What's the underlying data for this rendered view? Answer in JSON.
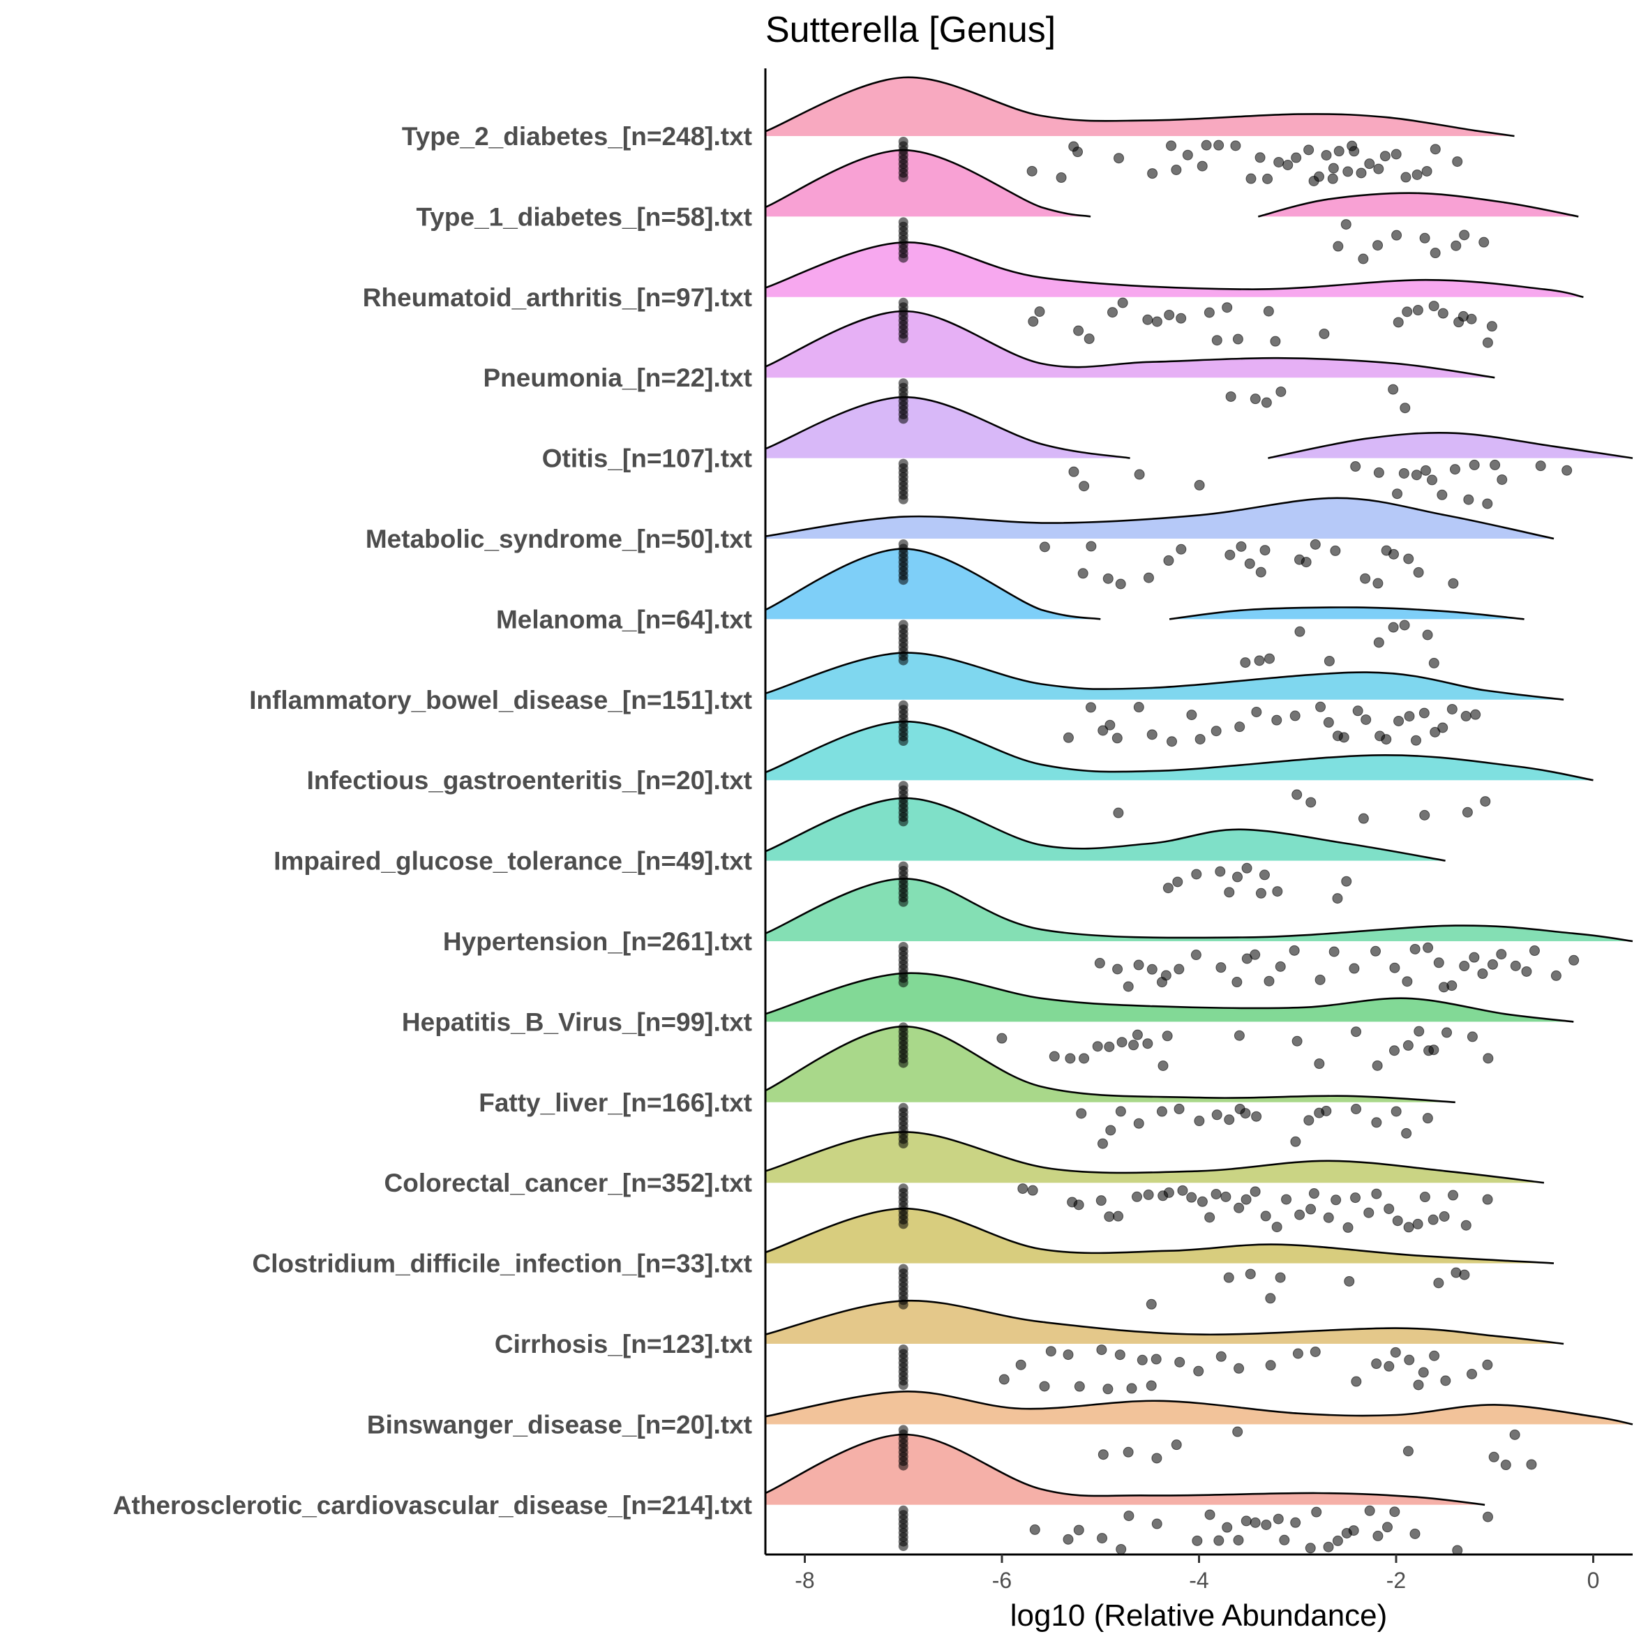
{
  "chart_data": {
    "type": "raincloud",
    "title": "Sutterella [Genus]",
    "xlabel": "log10 (Relative Abundance)",
    "ylabel": "",
    "xlim": [
      -8.4,
      0.4
    ],
    "x_ticks": [
      -8,
      -6,
      -4,
      -2,
      0
    ],
    "x_tick_labels": [
      "-8",
      "-6",
      "-4",
      "-2",
      "0"
    ],
    "zero_value": -7.0,
    "grid": false,
    "legend": "none",
    "categories": [
      {
        "name": "Type_2_diabetes_[n=248].txt",
        "color": "#f8a9c0",
        "density": [
          [
            -8.4,
            0.06
          ],
          [
            -7.0,
            0.75
          ],
          [
            -5.6,
            0.26
          ],
          [
            -4.5,
            0.2
          ],
          [
            -3.0,
            0.28
          ],
          [
            -2.1,
            0.24
          ],
          [
            -1.2,
            0.07
          ],
          [
            -0.8,
            0.0
          ]
        ],
        "points": [
          -5.7,
          -5.4,
          -5.3,
          -5.2,
          -4.8,
          -4.5,
          -4.3,
          -4.2,
          -4.1,
          -4.0,
          -3.9,
          -3.8,
          -3.6,
          -3.5,
          -3.4,
          -3.3,
          -3.2,
          -3.1,
          -3.0,
          -2.9,
          -2.8,
          -2.75,
          -2.7,
          -2.65,
          -2.6,
          -2.55,
          -2.5,
          -2.45,
          -2.4,
          -2.35,
          -2.3,
          -2.2,
          -2.1,
          -2.0,
          -1.9,
          -1.8,
          -1.7,
          -1.6,
          -1.4
        ]
      },
      {
        "name": "Type_1_diabetes_[n=58].txt",
        "color": "#f8a1d4",
        "density": [
          [
            -8.4,
            0.12
          ],
          [
            -7.0,
            0.85
          ],
          [
            -5.6,
            0.12
          ],
          [
            -5.1,
            0.0
          ]
        ],
        "density2": [
          [
            -3.4,
            0.0
          ],
          [
            -2.7,
            0.22
          ],
          [
            -1.8,
            0.3
          ],
          [
            -0.9,
            0.18
          ],
          [
            -0.15,
            0.0
          ]
        ],
        "points": [
          -2.6,
          -2.5,
          -2.3,
          -2.2,
          -2.0,
          -1.7,
          -1.6,
          -1.4,
          -1.3,
          -1.1
        ]
      },
      {
        "name": "Rheumatoid_arthritis_[n=97].txt",
        "color": "#f7a8ef",
        "density": [
          [
            -8.4,
            0.12
          ],
          [
            -7.0,
            0.7
          ],
          [
            -5.6,
            0.25
          ],
          [
            -3.5,
            0.1
          ],
          [
            -1.7,
            0.22
          ],
          [
            -0.5,
            0.1
          ],
          [
            -0.1,
            0.0
          ]
        ],
        "points": [
          -5.7,
          -5.6,
          -5.2,
          -5.1,
          -4.9,
          -4.8,
          -4.5,
          -4.4,
          -4.3,
          -4.2,
          -3.9,
          -3.8,
          -3.7,
          -3.6,
          -3.3,
          -3.2,
          -2.7,
          -2.0,
          -1.9,
          -1.8,
          -1.6,
          -1.5,
          -1.4,
          -1.3,
          -1.2,
          -1.1,
          -1.0
        ]
      },
      {
        "name": "Pneumonia_[n=22].txt",
        "color": "#e6b0f5",
        "density": [
          [
            -8.4,
            0.14
          ],
          [
            -7.0,
            0.85
          ],
          [
            -5.6,
            0.18
          ],
          [
            -4.5,
            0.2
          ],
          [
            -3.2,
            0.25
          ],
          [
            -2.0,
            0.18
          ],
          [
            -1.0,
            0.0
          ]
        ],
        "points": [
          -3.7,
          -3.4,
          -3.3,
          -3.2,
          -2.0,
          -1.9
        ]
      },
      {
        "name": "Otitis_[n=107].txt",
        "color": "#d8b8f8",
        "density": [
          [
            -8.4,
            0.12
          ],
          [
            -7.0,
            0.78
          ],
          [
            -5.6,
            0.18
          ],
          [
            -4.7,
            0.0
          ]
        ],
        "density2": [
          [
            -3.3,
            0.0
          ],
          [
            -2.3,
            0.25
          ],
          [
            -1.4,
            0.32
          ],
          [
            -0.4,
            0.15
          ],
          [
            0.4,
            0.0
          ]
        ],
        "points": [
          -5.3,
          -5.2,
          -4.6,
          -4.0,
          -2.4,
          -2.2,
          -2.0,
          -1.9,
          -1.8,
          -1.7,
          -1.6,
          -1.5,
          -1.4,
          -1.3,
          -1.2,
          -1.1,
          -1.0,
          -0.9,
          -0.5,
          -0.3
        ]
      },
      {
        "name": "Metabolic_syndrome_[n=50].txt",
        "color": "#b6c9f8",
        "density": [
          [
            -8.4,
            0.03
          ],
          [
            -7.0,
            0.28
          ],
          [
            -5.5,
            0.2
          ],
          [
            -4.0,
            0.3
          ],
          [
            -2.6,
            0.52
          ],
          [
            -1.5,
            0.3
          ],
          [
            -0.4,
            0.0
          ]
        ],
        "points": [
          -5.6,
          -5.2,
          -5.1,
          -4.9,
          -4.8,
          -4.5,
          -4.3,
          -4.2,
          -3.7,
          -3.6,
          -3.5,
          -3.4,
          -3.3,
          -3.0,
          -2.9,
          -2.8,
          -2.6,
          -2.3,
          -2.2,
          -2.1,
          -2.0,
          -1.9,
          -1.8,
          -1.4
        ]
      },
      {
        "name": "Melanoma_[n=64].txt",
        "color": "#7ecff8",
        "density": [
          [
            -8.4,
            0.12
          ],
          [
            -7.0,
            0.9
          ],
          [
            -5.6,
            0.12
          ],
          [
            -5.0,
            0.0
          ]
        ],
        "density2": [
          [
            -4.3,
            0.0
          ],
          [
            -3.5,
            0.12
          ],
          [
            -2.4,
            0.15
          ],
          [
            -1.5,
            0.1
          ],
          [
            -0.7,
            0.0
          ]
        ],
        "points": [
          -3.5,
          -3.4,
          -3.3,
          -3.0,
          -2.7,
          -2.2,
          -2.0,
          -1.9,
          -1.7,
          -1.6
        ]
      },
      {
        "name": "Inflammatory_bowel_disease_[n=151].txt",
        "color": "#7fd7ef",
        "density": [
          [
            -8.4,
            0.08
          ],
          [
            -7.0,
            0.6
          ],
          [
            -5.6,
            0.2
          ],
          [
            -4.5,
            0.15
          ],
          [
            -2.3,
            0.35
          ],
          [
            -1.1,
            0.12
          ],
          [
            -0.3,
            0.0
          ]
        ],
        "points": [
          -5.3,
          -5.1,
          -5.0,
          -4.9,
          -4.8,
          -4.6,
          -4.5,
          -4.3,
          -4.1,
          -4.0,
          -3.8,
          -3.6,
          -3.4,
          -3.2,
          -3.0,
          -2.8,
          -2.7,
          -2.6,
          -2.5,
          -2.4,
          -2.3,
          -2.2,
          -2.1,
          -2.0,
          -1.9,
          -1.8,
          -1.7,
          -1.6,
          -1.5,
          -1.4,
          -1.3,
          -1.2
        ]
      },
      {
        "name": "Infectious_gastroenteritis_[n=20].txt",
        "color": "#7fe0e0",
        "density": [
          [
            -8.4,
            0.1
          ],
          [
            -7.0,
            0.75
          ],
          [
            -5.6,
            0.2
          ],
          [
            -4.4,
            0.12
          ],
          [
            -2.2,
            0.32
          ],
          [
            -0.8,
            0.18
          ],
          [
            0.0,
            0.0
          ]
        ],
        "points": [
          -4.8,
          -3.0,
          -2.9,
          -2.3,
          -1.7,
          -1.3,
          -1.1
        ]
      },
      {
        "name": "Impaired_glucose_tolerance_[n=49].txt",
        "color": "#7fe0c8",
        "density": [
          [
            -8.4,
            0.12
          ],
          [
            -7.0,
            0.8
          ],
          [
            -5.6,
            0.2
          ],
          [
            -4.5,
            0.22
          ],
          [
            -3.6,
            0.4
          ],
          [
            -2.5,
            0.22
          ],
          [
            -1.5,
            0.0
          ]
        ],
        "points": [
          -4.3,
          -4.2,
          -4.0,
          -3.8,
          -3.7,
          -3.6,
          -3.5,
          -3.4,
          -3.3,
          -3.2,
          -2.6,
          -2.5
        ]
      },
      {
        "name": "Hypertension_[n=261].txt",
        "color": "#84dfb4",
        "density": [
          [
            -8.4,
            0.1
          ],
          [
            -7.0,
            0.8
          ],
          [
            -5.6,
            0.15
          ],
          [
            -3.5,
            0.05
          ],
          [
            -1.4,
            0.2
          ],
          [
            -0.2,
            0.1
          ],
          [
            0.4,
            0.0
          ]
        ],
        "points": [
          -5.0,
          -4.8,
          -4.7,
          -4.6,
          -4.5,
          -4.4,
          -4.3,
          -4.2,
          -4.0,
          -3.8,
          -3.6,
          -3.5,
          -3.4,
          -3.3,
          -3.2,
          -3.0,
          -2.8,
          -2.6,
          -2.4,
          -2.2,
          -2.0,
          -1.9,
          -1.8,
          -1.7,
          -1.6,
          -1.5,
          -1.4,
          -1.3,
          -1.2,
          -1.1,
          -1.0,
          -0.9,
          -0.8,
          -0.7,
          -0.6,
          -0.4,
          -0.2
        ]
      },
      {
        "name": "Hepatitis_B_Virus_[n=99].txt",
        "color": "#82d996",
        "density": [
          [
            -8.4,
            0.1
          ],
          [
            -7.0,
            0.62
          ],
          [
            -5.6,
            0.3
          ],
          [
            -4.5,
            0.2
          ],
          [
            -3.0,
            0.18
          ],
          [
            -1.9,
            0.3
          ],
          [
            -0.9,
            0.1
          ],
          [
            -0.2,
            0.0
          ]
        ],
        "points": [
          -6.0,
          -5.5,
          -5.3,
          -5.2,
          -5.0,
          -4.9,
          -4.8,
          -4.7,
          -4.6,
          -4.5,
          -4.4,
          -4.3,
          -3.6,
          -3.0,
          -2.8,
          -2.4,
          -2.2,
          -2.0,
          -1.9,
          -1.8,
          -1.7,
          -1.6,
          -1.5,
          -1.2,
          -1.1
        ]
      },
      {
        "name": "Fatty_liver_[n=166].txt",
        "color": "#a9d88a",
        "density": [
          [
            -8.4,
            0.15
          ],
          [
            -7.0,
            0.97
          ],
          [
            -5.6,
            0.2
          ],
          [
            -4.0,
            0.06
          ],
          [
            -2.5,
            0.08
          ],
          [
            -1.4,
            0.0
          ]
        ],
        "points": [
          -5.2,
          -5.0,
          -4.9,
          -4.8,
          -4.6,
          -4.4,
          -4.2,
          -4.0,
          -3.8,
          -3.7,
          -3.6,
          -3.5,
          -3.4,
          -3.0,
          -2.9,
          -2.8,
          -2.7,
          -2.4,
          -2.2,
          -2.0,
          -1.9,
          -1.7
        ]
      },
      {
        "name": "Colorectal_cancer_[n=352].txt",
        "color": "#cad484",
        "density": [
          [
            -8.4,
            0.15
          ],
          [
            -7.0,
            0.65
          ],
          [
            -5.5,
            0.18
          ],
          [
            -4.0,
            0.15
          ],
          [
            -2.7,
            0.28
          ],
          [
            -1.5,
            0.15
          ],
          [
            -0.5,
            0.0
          ]
        ],
        "points": [
          -5.8,
          -5.7,
          -5.3,
          -5.2,
          -5.0,
          -4.9,
          -4.8,
          -4.6,
          -4.5,
          -4.4,
          -4.3,
          -4.2,
          -4.1,
          -4.0,
          -3.9,
          -3.8,
          -3.7,
          -3.6,
          -3.5,
          -3.4,
          -3.3,
          -3.2,
          -3.1,
          -3.0,
          -2.9,
          -2.8,
          -2.7,
          -2.6,
          -2.5,
          -2.4,
          -2.3,
          -2.2,
          -2.1,
          -2.0,
          -1.9,
          -1.8,
          -1.7,
          -1.6,
          -1.5,
          -1.4,
          -1.3,
          -1.1
        ]
      },
      {
        "name": "Clostridium_difficile_infection_[n=33].txt",
        "color": "#d8cd7e",
        "density": [
          [
            -8.4,
            0.14
          ],
          [
            -7.0,
            0.7
          ],
          [
            -5.6,
            0.18
          ],
          [
            -4.3,
            0.16
          ],
          [
            -3.2,
            0.24
          ],
          [
            -1.8,
            0.1
          ],
          [
            -0.4,
            0.0
          ]
        ],
        "points": [
          -4.5,
          -3.7,
          -3.5,
          -3.3,
          -3.2,
          -2.5,
          -1.6,
          -1.4,
          -1.3
        ]
      },
      {
        "name": "Cirrhosis_[n=123].txt",
        "color": "#e4c88a",
        "density": [
          [
            -8.4,
            0.12
          ],
          [
            -7.0,
            0.55
          ],
          [
            -5.6,
            0.28
          ],
          [
            -4.0,
            0.12
          ],
          [
            -2.0,
            0.2
          ],
          [
            -1.0,
            0.1
          ],
          [
            -0.3,
            0.0
          ]
        ],
        "points": [
          -6.0,
          -5.8,
          -5.6,
          -5.5,
          -5.3,
          -5.2,
          -5.0,
          -4.9,
          -4.8,
          -4.7,
          -4.6,
          -4.5,
          -4.4,
          -4.2,
          -4.0,
          -3.8,
          -3.6,
          -3.3,
          -3.0,
          -2.8,
          -2.4,
          -2.2,
          -2.1,
          -2.0,
          -1.9,
          -1.8,
          -1.7,
          -1.6,
          -1.5,
          -1.2,
          -1.1
        ]
      },
      {
        "name": "Binswanger_disease_[n=20].txt",
        "color": "#f2c39a",
        "density": [
          [
            -8.4,
            0.1
          ],
          [
            -7.0,
            0.42
          ],
          [
            -5.8,
            0.2
          ],
          [
            -4.4,
            0.3
          ],
          [
            -3.0,
            0.14
          ],
          [
            -2.0,
            0.12
          ],
          [
            -1.0,
            0.25
          ],
          [
            0.0,
            0.1
          ],
          [
            0.4,
            0.0
          ]
        ],
        "points": [
          -5.0,
          -4.7,
          -4.4,
          -4.2,
          -3.6,
          -1.9,
          -1.0,
          -0.9,
          -0.8,
          -0.6
        ]
      },
      {
        "name": "Atherosclerotic_cardiovascular_disease_[n=214].txt",
        "color": "#f5b0a8",
        "density": [
          [
            -8.4,
            0.15
          ],
          [
            -7.0,
            0.9
          ],
          [
            -5.6,
            0.2
          ],
          [
            -4.5,
            0.12
          ],
          [
            -2.8,
            0.15
          ],
          [
            -1.8,
            0.1
          ],
          [
            -1.1,
            0.0
          ]
        ],
        "points": [
          -5.7,
          -5.3,
          -5.2,
          -5.0,
          -4.8,
          -4.7,
          -4.4,
          -4.0,
          -3.9,
          -3.8,
          -3.7,
          -3.6,
          -3.5,
          -3.4,
          -3.3,
          -3.2,
          -3.1,
          -3.0,
          -2.9,
          -2.8,
          -2.7,
          -2.6,
          -2.5,
          -2.4,
          -2.3,
          -2.2,
          -2.1,
          -2.0,
          -1.8,
          -1.4,
          -1.1
        ]
      }
    ]
  }
}
